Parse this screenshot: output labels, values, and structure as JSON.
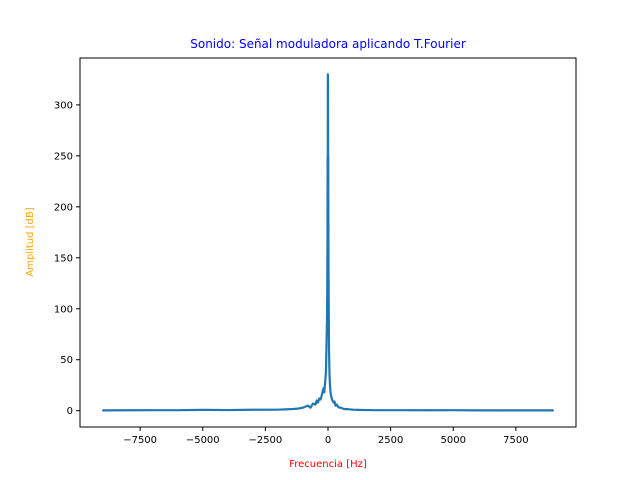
{
  "colors": {
    "title": "#0000ff",
    "xlabel": "#ff0000",
    "ylabel": "#ffa500",
    "series": "#1f77b4",
    "axes": "#000000"
  },
  "chart_data": {
    "type": "line",
    "title": "Sonido: Señal moduladora aplicando T.Fourier",
    "xlabel": "Frecuencia [Hz]",
    "ylabel": "Amplitud [dB]",
    "xlim": [
      -9900,
      9900
    ],
    "ylim": [
      -16,
      346
    ],
    "grid": false,
    "x_ticks": [
      -7500,
      -5000,
      -2500,
      0,
      2500,
      5000,
      7500
    ],
    "x_tick_labels": [
      "−7500",
      "−5000",
      "−2500",
      "0",
      "2500",
      "5000",
      "7500"
    ],
    "y_ticks": [
      0,
      50,
      100,
      150,
      200,
      250,
      300
    ],
    "y_tick_labels": [
      "0",
      "50",
      "100",
      "150",
      "200",
      "250",
      "300"
    ],
    "series": [
      {
        "x": [
          -9000,
          -8000,
          -7000,
          -6000,
          -5000,
          -4000,
          -3000,
          -2000,
          -1500,
          -1200,
          -1000,
          -800,
          -700,
          -600,
          -500,
          -450,
          -400,
          -350,
          -300,
          -260,
          -220,
          -180,
          -150,
          -120,
          -100,
          -80,
          -60,
          -40,
          -30,
          -20,
          -15,
          -10,
          -5,
          0,
          5,
          10,
          15,
          20,
          30,
          40,
          60,
          80,
          100,
          120,
          150,
          180,
          220,
          260,
          300,
          350,
          400,
          450,
          500,
          600,
          700,
          800,
          1000,
          1200,
          1500,
          2000,
          3000,
          4000,
          5000,
          6000,
          7000,
          8000,
          9000
        ],
        "y": [
          0.3,
          0.4,
          0.5,
          0.5,
          0.8,
          0.6,
          0.9,
          1,
          1.5,
          2,
          3,
          5,
          3,
          7,
          6,
          10,
          8,
          12,
          11,
          14,
          18,
          22,
          18,
          26,
          32,
          40,
          65,
          90,
          120,
          170,
          248,
          200,
          330,
          320,
          240,
          250,
          180,
          140,
          100,
          60,
          35,
          25,
          18,
          15,
          12,
          10,
          8,
          9,
          5,
          6,
          4,
          3,
          3,
          2,
          1.5,
          1.5,
          1,
          0.8,
          0.6,
          0.5,
          0.5,
          0.4,
          0.5,
          0.3,
          0.3,
          0.3,
          0.3
        ]
      }
    ]
  }
}
